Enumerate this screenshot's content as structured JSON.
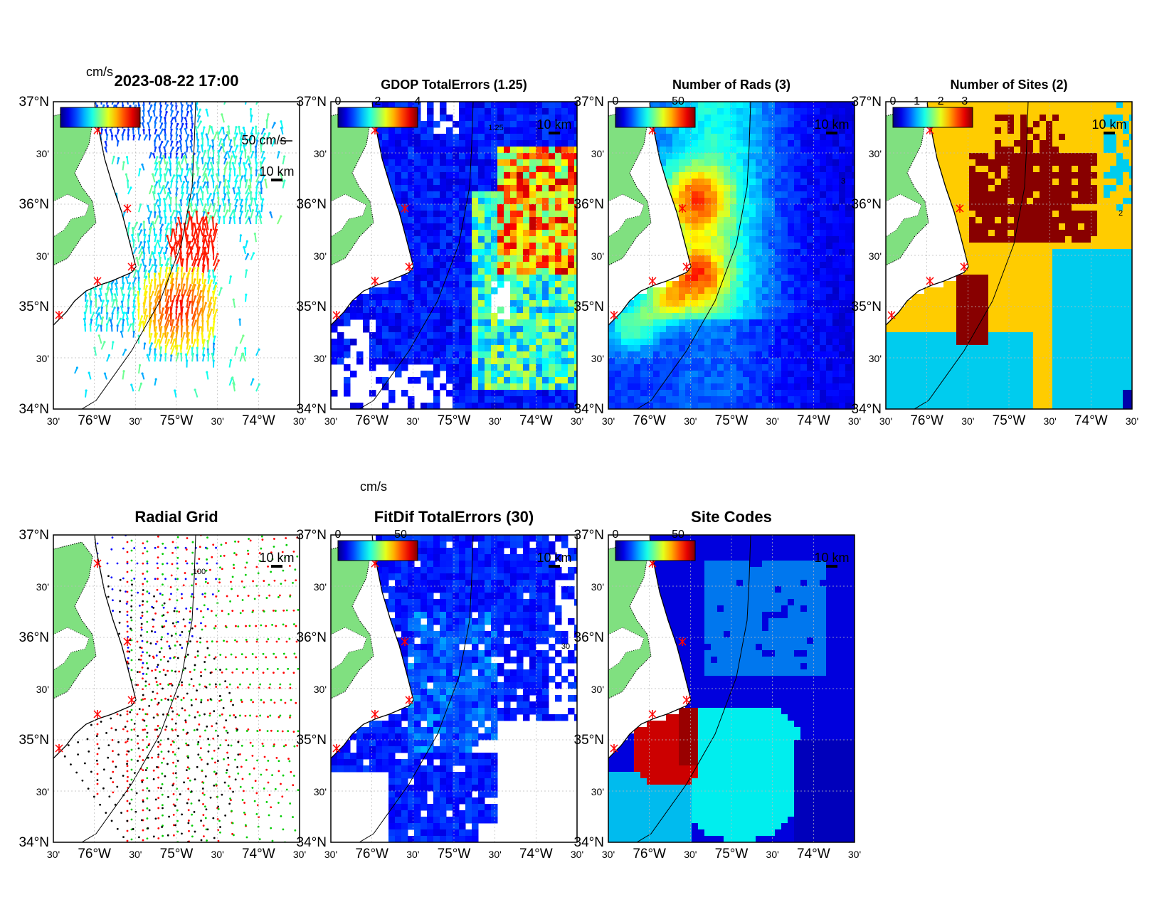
{
  "figure": {
    "timestamp": "2023-08-22 17:00",
    "lat_labels": [
      "37°N",
      "30'",
      "36°N",
      "30'",
      "35°N",
      "30'",
      "34°N"
    ],
    "lon_labels": [
      "30'",
      "76°W",
      "30'",
      "75°W",
      "30'",
      "74°W",
      "30'"
    ],
    "scale_bar_label": "10 km",
    "colorbar_unit": "cm/s",
    "colors": {
      "land": "#80e080",
      "site_marker": "#ff0000",
      "grid_site_colors": [
        "#0000ff",
        "#ff0000",
        "#00cc00",
        "#000000"
      ]
    },
    "panels": [
      {
        "key": "vectors",
        "title": "2023-08-22 17:00",
        "colorbar_ticks": [],
        "extra_label": "50 cm/s"
      },
      {
        "key": "gdop",
        "title": "GDOP TotalErrors (1.25)",
        "colorbar_ticks": [
          "0",
          "2",
          "4"
        ],
        "contour_label": "1.25"
      },
      {
        "key": "rads",
        "title": "Number of Rads (3)",
        "colorbar_ticks": [
          "0",
          "50"
        ],
        "contour_label": "3"
      },
      {
        "key": "sites",
        "title": "Number of Sites (2)",
        "colorbar_ticks": [
          "0",
          "1",
          "2",
          "3"
        ],
        "contour_label": "2"
      },
      {
        "key": "grid",
        "title": "Radial Grid",
        "colorbar_ticks": [],
        "contour_label": "100"
      },
      {
        "key": "fitdif",
        "title": "FitDif TotalErrors (30)",
        "colorbar_ticks": [
          "0",
          "50"
        ],
        "contour_label": "30"
      },
      {
        "key": "codes",
        "title": "Site Codes",
        "colorbar_ticks": [
          "0",
          "50"
        ]
      }
    ]
  }
}
